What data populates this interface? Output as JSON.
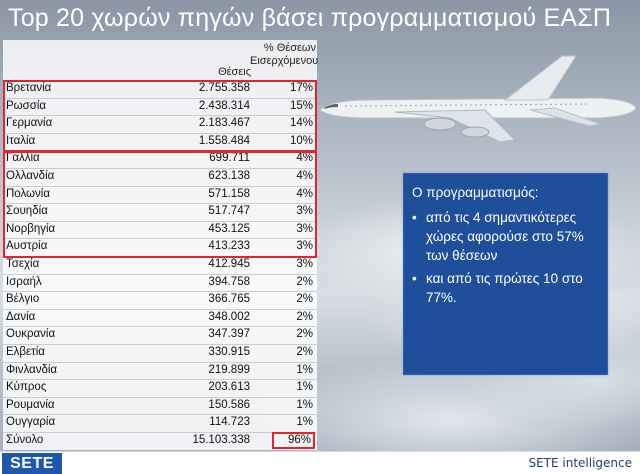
{
  "slide": {
    "title": "Top 20 χωρών πηγών βάσει προγραμματισμού ΕΑΣΠ"
  },
  "table": {
    "col_value_header": "Θέσεις",
    "col_pct_header_line1": "% Θέσεων",
    "col_pct_header_line2": "Εισερχόμενου",
    "rows": [
      {
        "country": "Βρετανία",
        "value": "2.755.358",
        "pct": "17%"
      },
      {
        "country": "Ρωσσία",
        "value": "2.438.314",
        "pct": "15%"
      },
      {
        "country": "Γερμανία",
        "value": "2.183.467",
        "pct": "14%"
      },
      {
        "country": "Ιταλία",
        "value": "1.558.484",
        "pct": "10%"
      },
      {
        "country": "Γαλλία",
        "value": "699.711",
        "pct": "4%"
      },
      {
        "country": "Ολλανδία",
        "value": "623.138",
        "pct": "4%"
      },
      {
        "country": "Πολωνία",
        "value": "571.158",
        "pct": "4%"
      },
      {
        "country": "Σουηδία",
        "value": "517.747",
        "pct": "3%"
      },
      {
        "country": "Νορβηγία",
        "value": "453.125",
        "pct": "3%"
      },
      {
        "country": "Αυστρία",
        "value": "413.233",
        "pct": "3%"
      },
      {
        "country": "Τσεχία",
        "value": "412.945",
        "pct": "3%"
      },
      {
        "country": "Ισραήλ",
        "value": "394.758",
        "pct": "2%"
      },
      {
        "country": "Βέλγιο",
        "value": "366.765",
        "pct": "2%"
      },
      {
        "country": "Δανία",
        "value": "348.002",
        "pct": "2%"
      },
      {
        "country": "Ουκρανία",
        "value": "347.397",
        "pct": "2%"
      },
      {
        "country": "Ελβετία",
        "value": "330.915",
        "pct": "2%"
      },
      {
        "country": "Φινλανδία",
        "value": "219.899",
        "pct": "1%"
      },
      {
        "country": "Κύπρος",
        "value": "203.613",
        "pct": "1%"
      },
      {
        "country": "Ρουμανία",
        "value": "150.586",
        "pct": "1%"
      },
      {
        "country": "Ουγγαρία",
        "value": "114.723",
        "pct": "1%"
      }
    ],
    "total": {
      "country": "Σύνολο",
      "value": "15.103.338",
      "pct": "96%"
    }
  },
  "info_box": {
    "heading": "Ο προγραμματισμός:",
    "bullet_symbol": "•",
    "bullet_1": "από τις 4 σημαντικότερες χώρες αφορούσε στο 57% των θέσεων",
    "bullet_2": " και από τις πρώτες 10 στο 77%."
  },
  "footer": {
    "logo_text": "SETE",
    "right_text": "SETE intelligence"
  },
  "colors": {
    "highlight": "#e3232e",
    "info_box_bg": "#1f4f9a",
    "logo_bg": "#1f56b0"
  }
}
